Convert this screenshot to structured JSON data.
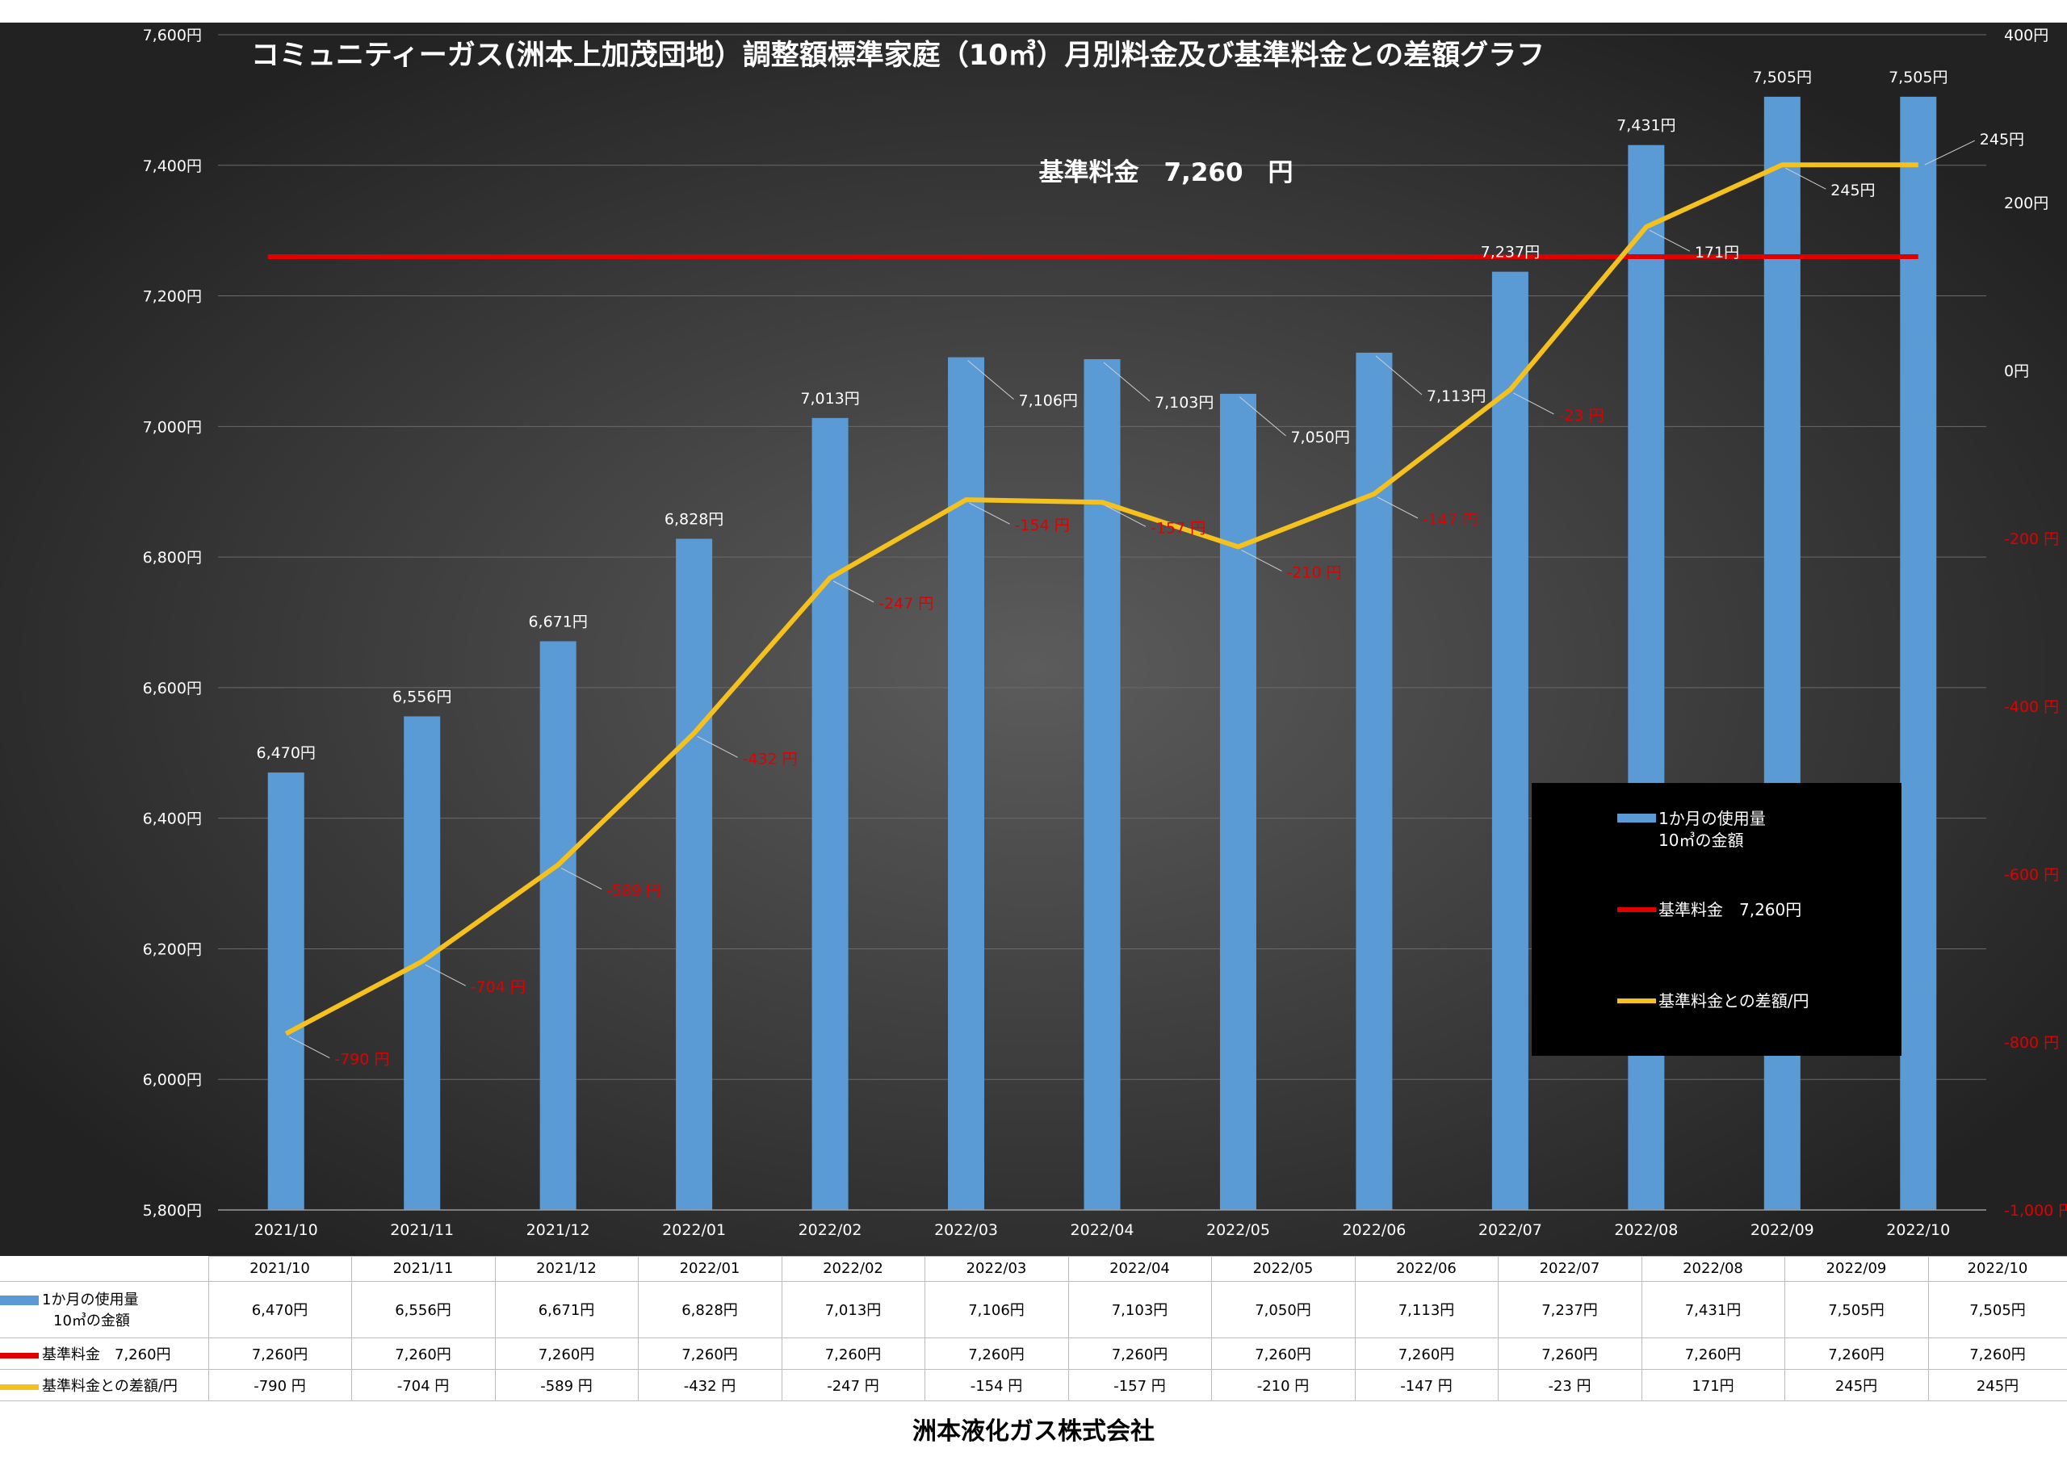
{
  "chart_data": {
    "type": "bar+line",
    "title": "コミュニティーガス(洲本上加茂団地）調整額標準家庭（10㎥）月別料金及び基準料金との差額グラフ",
    "base_label": "基準料金　7,260　円",
    "categories": [
      "2021/10",
      "2021/11",
      "2021/12",
      "2022/01",
      "2022/02",
      "2022/03",
      "2022/04",
      "2022/05",
      "2022/06",
      "2022/07",
      "2022/08",
      "2022/09",
      "2022/10"
    ],
    "series": [
      {
        "name_lines": [
          "1か月の使用量",
          "10㎥の金額"
        ],
        "type": "bar",
        "axis": "left",
        "color": "#5b9bd5",
        "values": [
          6470,
          6556,
          6671,
          6828,
          7013,
          7106,
          7103,
          7050,
          7113,
          7237,
          7431,
          7505,
          7505
        ],
        "labels": [
          "6,470円",
          "6,556円",
          "6,671円",
          "6,828円",
          "7,013円",
          "7,106円",
          "7,103円",
          "7,050円",
          "7,113円",
          "7,237円",
          "7,431円",
          "7,505円",
          "7,505円"
        ]
      },
      {
        "name": "基準料金　7,260円",
        "type": "line",
        "axis": "left",
        "color": "#e00000",
        "values": [
          7260,
          7260,
          7260,
          7260,
          7260,
          7260,
          7260,
          7260,
          7260,
          7260,
          7260,
          7260,
          7260
        ],
        "labels": [
          "7,260円",
          "7,260円",
          "7,260円",
          "7,260円",
          "7,260円",
          "7,260円",
          "7,260円",
          "7,260円",
          "7,260円",
          "7,260円",
          "7,260円",
          "7,260円",
          "7,260円"
        ]
      },
      {
        "name": "基準料金との差額/円",
        "type": "line",
        "axis": "right",
        "color": "#f5c11e",
        "values": [
          -790,
          -704,
          -589,
          -432,
          -247,
          -154,
          -157,
          -210,
          -147,
          -23,
          171,
          245,
          245
        ],
        "labels": [
          "-790 円",
          "-704 円",
          "-589 円",
          "-432 円",
          "-247 円",
          "-154 円",
          "-157 円",
          "-210 円",
          "-147 円",
          "-23 円",
          "171円",
          "245円",
          "245円"
        ],
        "table_labels": [
          "-790 円",
          "-704 円",
          "-589 円",
          "-432 円",
          "-247 円",
          "-154 円",
          "-157 円",
          "-210 円",
          "-147 円",
          "-23 円",
          "171円",
          "245円",
          "245円"
        ]
      }
    ],
    "y_left": {
      "ylim": [
        5800,
        7600
      ],
      "ticks": [
        5800,
        6000,
        6200,
        6400,
        6600,
        6800,
        7000,
        7200,
        7400,
        7600
      ],
      "tick_labels": [
        "5,800円",
        "6,000円",
        "6,200円",
        "6,400円",
        "6,600円",
        "6,800円",
        "7,000円",
        "7,200円",
        "7,400円",
        "7,600円"
      ]
    },
    "y_right": {
      "ylim": [
        -1000,
        400
      ],
      "ticks": [
        -1000,
        -800,
        -600,
        -400,
        -200,
        0,
        200,
        400
      ],
      "tick_labels": [
        "-1,000 円",
        "-800 円",
        "-600 円",
        "-400 円",
        "-200 円",
        "0円",
        "200円",
        "400円"
      ],
      "negative_color": "#e00000"
    },
    "grid": true,
    "legend_position": "bottom-right",
    "background": "#3a3a3a",
    "text_color": "#ffffff"
  },
  "footer": "洲本液化ガス株式会社"
}
